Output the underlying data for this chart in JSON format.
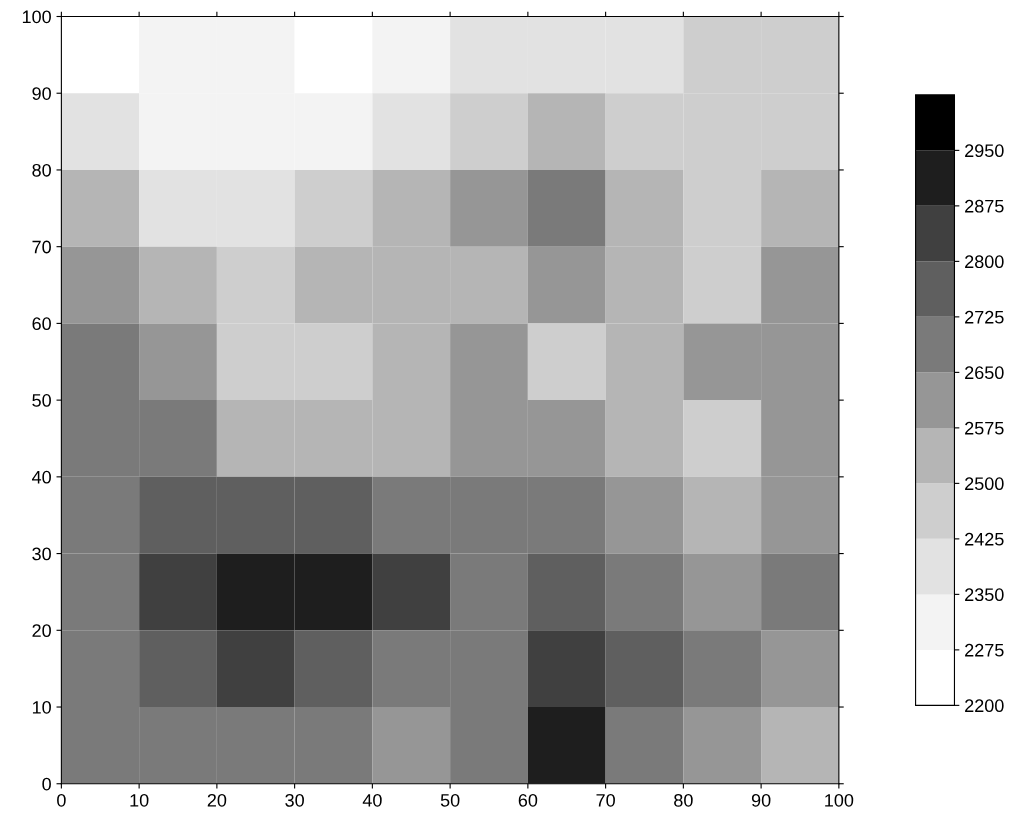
{
  "chart_data": {
    "type": "heatmap",
    "x": [
      5,
      15,
      25,
      35,
      45,
      55,
      65,
      75,
      85,
      95
    ],
    "y": [
      95,
      85,
      75,
      65,
      55,
      45,
      35,
      25,
      15,
      5
    ],
    "cells": [
      [
        2250,
        2300,
        2320,
        2260,
        2330,
        2400,
        2380,
        2420,
        2430,
        2440
      ],
      [
        2380,
        2300,
        2300,
        2310,
        2400,
        2450,
        2500,
        2480,
        2460,
        2480
      ],
      [
        2520,
        2420,
        2400,
        2450,
        2500,
        2600,
        2700,
        2550,
        2480,
        2560
      ],
      [
        2600,
        2550,
        2480,
        2500,
        2520,
        2560,
        2600,
        2500,
        2480,
        2600
      ],
      [
        2650,
        2580,
        2450,
        2480,
        2560,
        2620,
        2460,
        2540,
        2600,
        2620
      ],
      [
        2700,
        2650,
        2560,
        2520,
        2560,
        2620,
        2600,
        2500,
        2480,
        2580
      ],
      [
        2720,
        2760,
        2780,
        2760,
        2700,
        2650,
        2650,
        2600,
        2550,
        2640
      ],
      [
        2720,
        2860,
        2920,
        2880,
        2800,
        2720,
        2790,
        2720,
        2640,
        2680
      ],
      [
        2700,
        2760,
        2800,
        2760,
        2700,
        2680,
        2850,
        2780,
        2650,
        2580
      ],
      [
        2680,
        2700,
        2700,
        2650,
        2580,
        2720,
        2880,
        2700,
        2600,
        2560
      ]
    ],
    "xlim": [
      0,
      100
    ],
    "ylim": [
      0,
      100
    ],
    "xticks": [
      0,
      10,
      20,
      30,
      40,
      50,
      60,
      70,
      80,
      90,
      100
    ],
    "yticks": [
      0,
      10,
      20,
      30,
      40,
      50,
      60,
      70,
      80,
      90,
      100
    ],
    "clim": [
      2200,
      3025
    ],
    "cticks": [
      2200,
      2275,
      2350,
      2425,
      2500,
      2575,
      2650,
      2725,
      2800,
      2875,
      2950
    ],
    "grid": false
  }
}
